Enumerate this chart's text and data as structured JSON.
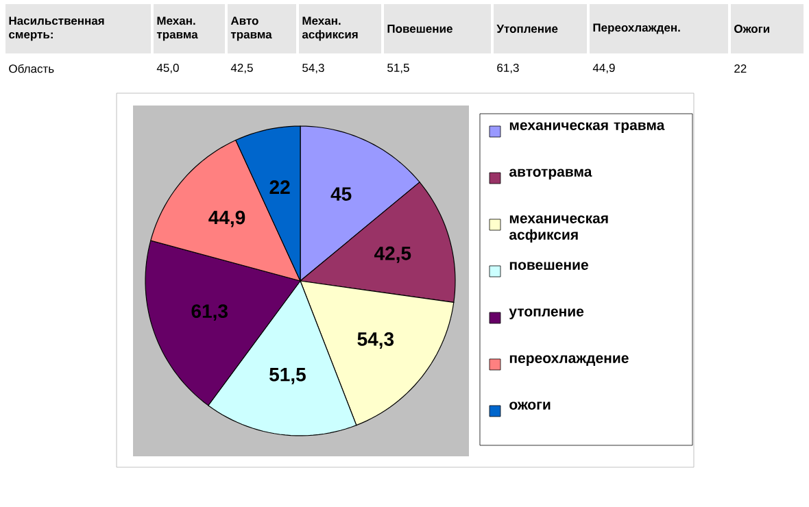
{
  "chart_data": {
    "type": "pie",
    "categories": [
      "механическая травма",
      "автотравма",
      "механическая асфиксия",
      "повешение",
      "утопление",
      "переохлаждение",
      "ожоги"
    ],
    "values": [
      45,
      42.5,
      54.3,
      51.5,
      61.3,
      44.9,
      22
    ],
    "colors": [
      "#9999ff",
      "#993366",
      "#ffffcc",
      "#ccffff",
      "#660066",
      "#ff8080",
      "#0066cc"
    ],
    "value_labels": [
      "45",
      "42,5",
      "54,3",
      "51,5",
      "61,3",
      "44,9",
      "22"
    ],
    "legend": "right",
    "annotations": [
      "Насильственная смерть:",
      "Механ. травма",
      "Авто травма",
      "Механ. асфиксия",
      "Повешение",
      "Утопление",
      "Переохлажден.",
      "Ожоги",
      "Область",
      "45,0",
      "42,5",
      "54,3",
      "51,5",
      "61,3",
      "44,9",
      "22"
    ]
  }
}
